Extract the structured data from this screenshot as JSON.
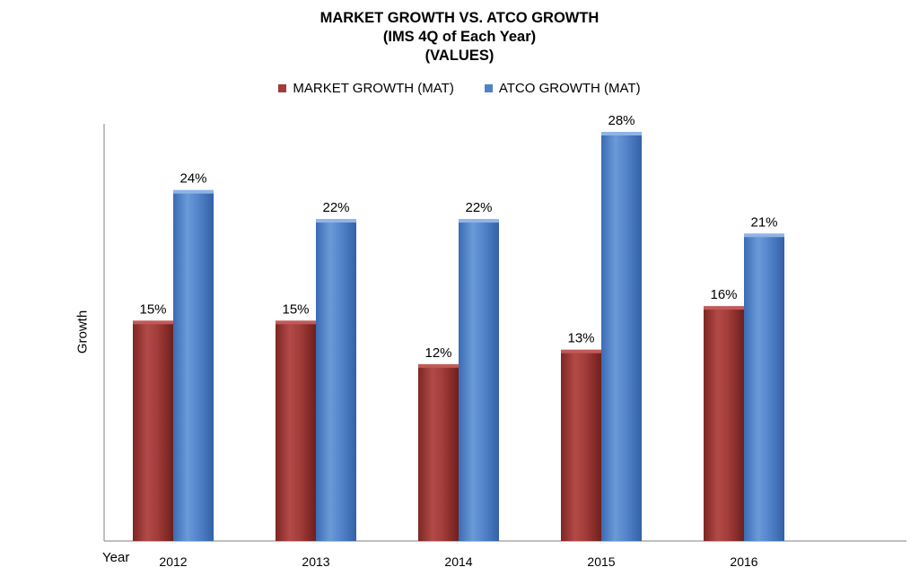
{
  "chart_data": {
    "type": "bar",
    "title": "MARKET GROWTH VS. ATCO GROWTH",
    "subtitle": "(IMS 4Q of Each Year)",
    "subtitle2": "(VALUES)",
    "xlabel": "Year",
    "ylabel": "Growth",
    "categories": [
      "2012",
      "2013",
      "2014",
      "2015",
      "2016"
    ],
    "series": [
      {
        "name": "MARKET GROWTH (MAT)",
        "values": [
          15,
          15,
          12,
          13,
          16
        ],
        "labels": [
          "15%",
          "15%",
          "12%",
          "13%",
          "16%"
        ],
        "color": "#a23b39"
      },
      {
        "name": "ATCO GROWTH (MAT)",
        "values": [
          24,
          22,
          22,
          28,
          21
        ],
        "labels": [
          "24%",
          "22%",
          "22%",
          "28%",
          "21%"
        ],
        "color": "#4f81c9"
      }
    ],
    "ylim": [
      0,
      28.5
    ],
    "grid": false,
    "legend": "top-center"
  }
}
